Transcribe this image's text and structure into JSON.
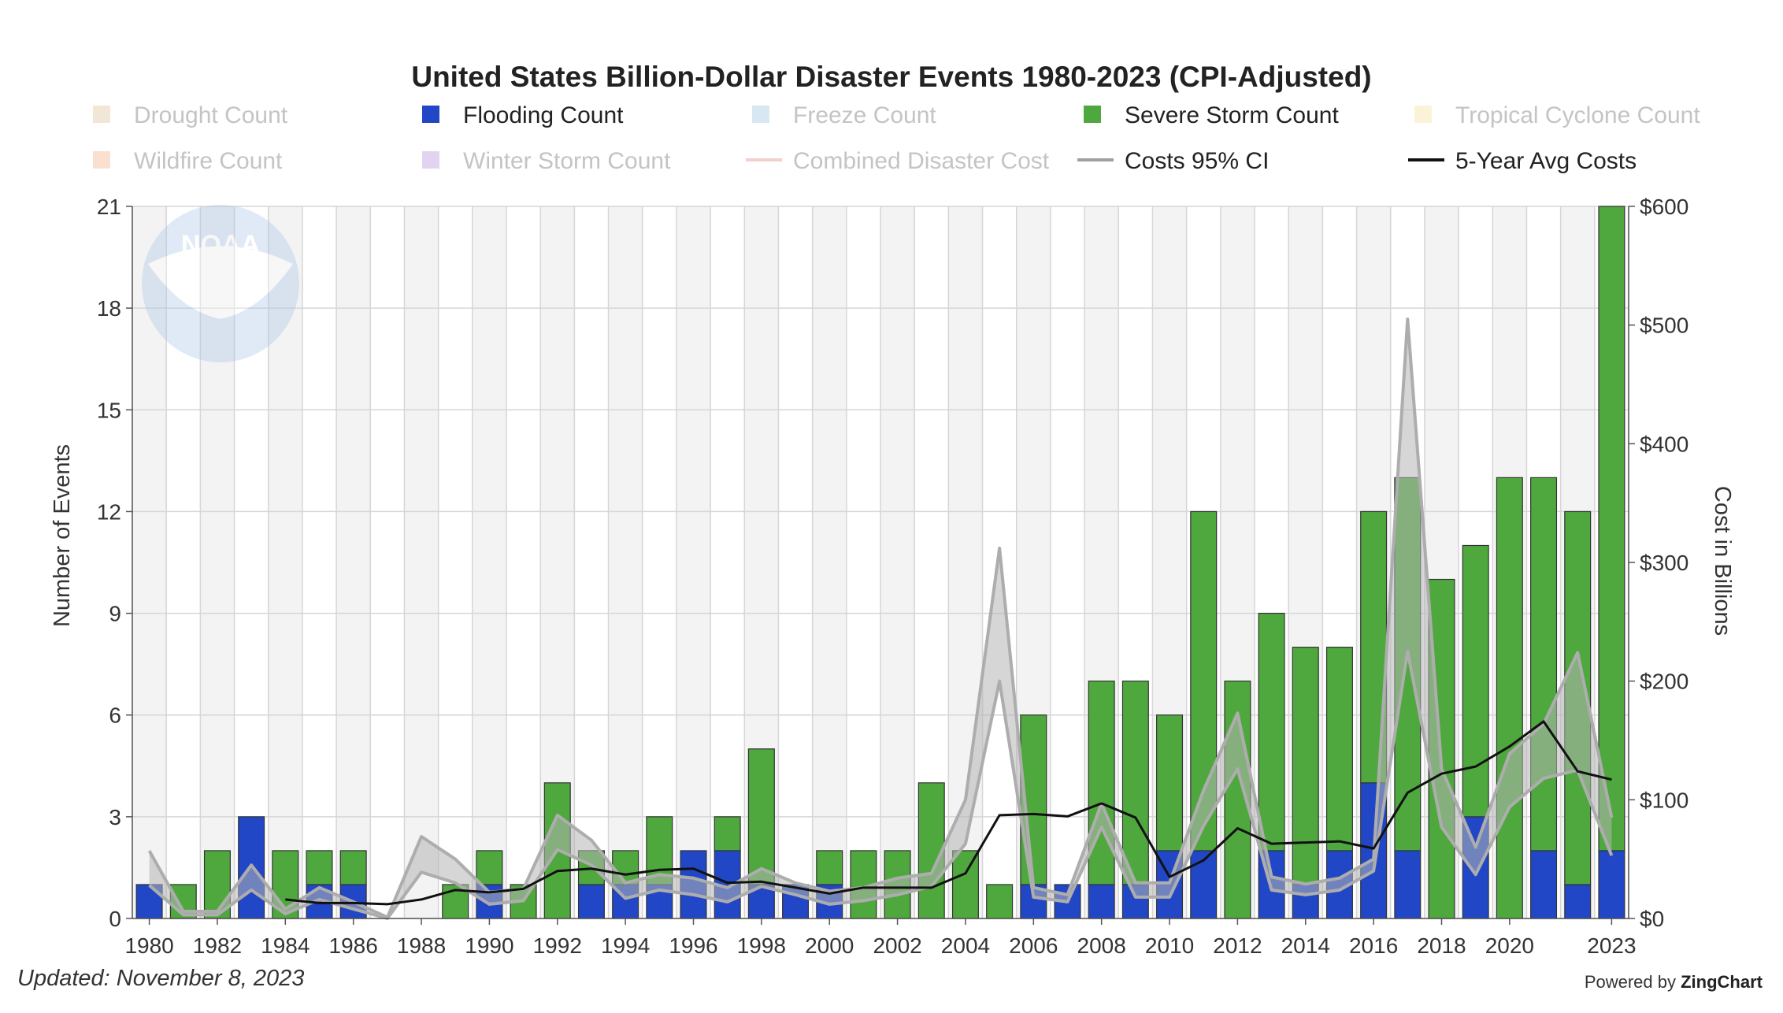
{
  "chart_data": {
    "type": "bar",
    "title": "United States Billion-Dollar Disaster Events 1980-2023 (CPI-Adjusted)",
    "xlabel": "",
    "ylabel": "Number of Events",
    "y2label": "Cost in Billions",
    "ylim": [
      0,
      21
    ],
    "y2lim": [
      0,
      600
    ],
    "yticks": [
      "0",
      "3",
      "6",
      "9",
      "12",
      "15",
      "18",
      "21"
    ],
    "y2ticks": [
      "$0",
      "$100",
      "$200",
      "$300",
      "$400",
      "$500",
      "$600"
    ],
    "xticks": [
      "1980",
      "1982",
      "1984",
      "1986",
      "1988",
      "1990",
      "1992",
      "1994",
      "1996",
      "1998",
      "2000",
      "2002",
      "2004",
      "2006",
      "2008",
      "2010",
      "2012",
      "2014",
      "2016",
      "2018",
      "2020",
      "2023"
    ],
    "categories": [
      1980,
      1981,
      1982,
      1983,
      1984,
      1985,
      1986,
      1987,
      1988,
      1989,
      1990,
      1991,
      1992,
      1993,
      1994,
      1995,
      1996,
      1997,
      1998,
      1999,
      2000,
      2001,
      2002,
      2003,
      2004,
      2005,
      2006,
      2007,
      2008,
      2009,
      2010,
      2011,
      2012,
      2013,
      2014,
      2015,
      2016,
      2017,
      2018,
      2019,
      2020,
      2021,
      2022,
      2023
    ],
    "series": [
      {
        "name": "Flooding Count",
        "color": "#2147c6",
        "values": [
          1,
          0,
          0,
          3,
          0,
          1,
          1,
          0,
          0,
          0,
          1,
          0,
          0,
          1,
          1,
          1,
          2,
          2,
          1,
          1,
          1,
          0,
          0,
          0,
          0,
          0,
          1,
          1,
          1,
          1,
          2,
          2,
          0,
          2,
          1,
          2,
          4,
          2,
          0,
          3,
          0,
          2,
          1,
          2
        ]
      },
      {
        "name": "Severe Storm Count",
        "color": "#4fa83d",
        "values": [
          0,
          1,
          2,
          0,
          2,
          1,
          1,
          0,
          0,
          1,
          1,
          1,
          4,
          1,
          1,
          2,
          0,
          1,
          4,
          0,
          1,
          2,
          2,
          4,
          2,
          1,
          5,
          0,
          6,
          6,
          4,
          10,
          7,
          7,
          7,
          6,
          8,
          11,
          10,
          8,
          13,
          11,
          11,
          19
        ]
      }
    ],
    "lines": [
      {
        "name": "5-Year Avg Costs",
        "color": "#111111",
        "start_year": 1984,
        "values": [
          16,
          13,
          13,
          12,
          16,
          24,
          22,
          25,
          40,
          42,
          37,
          41,
          42,
          30,
          31,
          26,
          21,
          26,
          26,
          26,
          38,
          87,
          88,
          86,
          97,
          85,
          35,
          49,
          76,
          63,
          64,
          65,
          59,
          106,
          122,
          128,
          145,
          166,
          124,
          117
        ]
      },
      {
        "name": "Costs 95% CI lower",
        "color": "#b0b0b0",
        "values": [
          28,
          3,
          3,
          24,
          4,
          16,
          8,
          0,
          39,
          30,
          12,
          15,
          58,
          45,
          17,
          24,
          20,
          14,
          27,
          20,
          12,
          15,
          20,
          27,
          63,
          200,
          18,
          14,
          77,
          18,
          18,
          78,
          126,
          24,
          20,
          24,
          40,
          225,
          77,
          37,
          94,
          118,
          125,
          53
        ]
      },
      {
        "name": "Costs 95% CI upper",
        "color": "#b0b0b0",
        "values": [
          57,
          6,
          6,
          45,
          8,
          26,
          14,
          1,
          69,
          50,
          22,
          25,
          87,
          66,
          30,
          37,
          34,
          26,
          42,
          30,
          23,
          26,
          34,
          38,
          100,
          312,
          26,
          20,
          97,
          30,
          30,
          108,
          173,
          35,
          29,
          34,
          50,
          505,
          126,
          60,
          139,
          164,
          224,
          85
        ]
      }
    ],
    "legend": [
      {
        "label": "Drought Count",
        "kind": "square",
        "color": "#f2e6d6",
        "active": false
      },
      {
        "label": "Flooding Count",
        "kind": "square",
        "color": "#2147c6",
        "active": true
      },
      {
        "label": "Freeze Count",
        "kind": "square",
        "color": "#d8e8f2",
        "active": false
      },
      {
        "label": "Severe Storm Count",
        "kind": "square",
        "color": "#4fa83d",
        "active": true
      },
      {
        "label": "Tropical Cyclone Count",
        "kind": "square",
        "color": "#fbf3d8",
        "active": false
      },
      {
        "label": "Wildfire Count",
        "kind": "square",
        "color": "#fbe0d0",
        "active": false
      },
      {
        "label": "Winter Storm Count",
        "kind": "square",
        "color": "#e2d3f0",
        "active": false
      },
      {
        "label": "Combined Disaster Cost",
        "kind": "line",
        "color": "#f2d0cc",
        "active": false
      },
      {
        "label": "Costs 95% CI",
        "kind": "line",
        "color": "#a0a0a0",
        "active": true
      },
      {
        "label": "5-Year Avg Costs",
        "kind": "line",
        "color": "#111111",
        "active": true
      }
    ],
    "legend_placement": "top"
  },
  "watermark": {
    "text": "NOAA",
    "icon": "noaa-logo-icon"
  },
  "footer": {
    "updated": "Updated: November 8, 2023",
    "powered_prefix": "Powered by ",
    "powered_brand": "ZingChart"
  }
}
